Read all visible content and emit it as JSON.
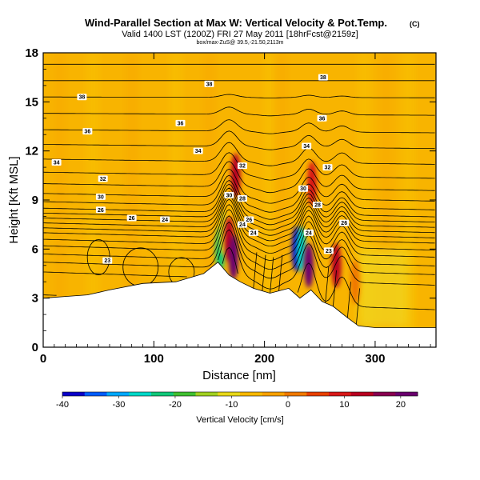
{
  "chart_data": {
    "type": "heatmap",
    "title": "Wind-Parallel Section at Max W: Vertical Velocity & Pot.Temp.",
    "title_mark": "(C)",
    "subtitle": "Valid 1400 LST (1200Z) FRI 27 May 2011 [18hrFcst@2159z]",
    "info_line": "box/max-ZuS@ 39.5,-21.50,2113m",
    "xlabel": "Distance [nm]",
    "ylabel": "Height [Kft MSL]",
    "xlim": [
      0,
      355
    ],
    "ylim": [
      0,
      18
    ],
    "x_ticks": [
      0,
      100,
      200,
      300
    ],
    "y_ticks": [
      0,
      3,
      6,
      9,
      12,
      15,
      18
    ],
    "colorbar": {
      "label": "Vertical Velocity [cm/s]",
      "min": -40,
      "max": 23,
      "tick_values": [
        -40,
        -30,
        -20,
        -10,
        0,
        10,
        20
      ],
      "colors": [
        "#0a00c8",
        "#005cff",
        "#00a8ff",
        "#00d8c8",
        "#10c878",
        "#40c030",
        "#a0d020",
        "#e8d818",
        "#f8b800",
        "#f8a000",
        "#f07800",
        "#e84000",
        "#d81818",
        "#b80020",
        "#880050",
        "#6a006e"
      ]
    },
    "terrain_profile": [
      [
        0,
        3.0
      ],
      [
        20,
        3.1
      ],
      [
        40,
        3.2
      ],
      [
        60,
        3.5
      ],
      [
        90,
        3.9
      ],
      [
        120,
        4.0
      ],
      [
        145,
        4.5
      ],
      [
        158,
        5.2
      ],
      [
        168,
        4.4
      ],
      [
        178,
        4.0
      ],
      [
        190,
        3.6
      ],
      [
        205,
        3.3
      ],
      [
        222,
        3.6
      ],
      [
        232,
        3.0
      ],
      [
        242,
        3.5
      ],
      [
        252,
        2.8
      ],
      [
        262,
        2.5
      ],
      [
        275,
        1.8
      ],
      [
        285,
        1.3
      ],
      [
        300,
        1.2
      ],
      [
        320,
        1.2
      ],
      [
        355,
        1.2
      ]
    ],
    "vertical_velocity_cells": [
      {
        "x": 160,
        "y": 6.0,
        "value": -22
      },
      {
        "x": 163,
        "y": 7.0,
        "value": -12
      },
      {
        "x": 168,
        "y": 6.6,
        "value": 14
      },
      {
        "x": 172,
        "y": 5.5,
        "value": 22
      },
      {
        "x": 174,
        "y": 10.5,
        "value": 12
      },
      {
        "x": 229,
        "y": 6.0,
        "value": -40
      },
      {
        "x": 233,
        "y": 6.0,
        "value": -28
      },
      {
        "x": 240,
        "y": 5.0,
        "value": 20
      },
      {
        "x": 243,
        "y": 10.0,
        "value": 10
      },
      {
        "x": 265,
        "y": 5.0,
        "value": 15
      },
      {
        "x": 282,
        "y": 4.0,
        "value": 3
      }
    ],
    "potential_temperature_labels": [
      {
        "x": 150,
        "y": 16.1,
        "text": "38"
      },
      {
        "x": 253,
        "y": 16.5,
        "text": "38"
      },
      {
        "x": 35,
        "y": 15.3,
        "text": "38"
      },
      {
        "x": 252,
        "y": 14.0,
        "text": "36"
      },
      {
        "x": 40,
        "y": 13.2,
        "text": "36"
      },
      {
        "x": 124,
        "y": 13.7,
        "text": "36"
      },
      {
        "x": 12,
        "y": 11.3,
        "text": "34"
      },
      {
        "x": 140,
        "y": 12.0,
        "text": "34"
      },
      {
        "x": 238,
        "y": 12.3,
        "text": "34"
      },
      {
        "x": 180,
        "y": 11.1,
        "text": "32"
      },
      {
        "x": 257,
        "y": 11.0,
        "text": "32"
      },
      {
        "x": 54,
        "y": 10.3,
        "text": "32"
      },
      {
        "x": 168,
        "y": 9.3,
        "text": "30"
      },
      {
        "x": 52,
        "y": 9.2,
        "text": "30"
      },
      {
        "x": 235,
        "y": 9.7,
        "text": "30"
      },
      {
        "x": 180,
        "y": 9.1,
        "text": "28"
      },
      {
        "x": 248,
        "y": 8.7,
        "text": "28"
      },
      {
        "x": 52,
        "y": 8.4,
        "text": "26"
      },
      {
        "x": 80,
        "y": 7.9,
        "text": "26"
      },
      {
        "x": 186,
        "y": 7.8,
        "text": "26"
      },
      {
        "x": 272,
        "y": 7.6,
        "text": "26"
      },
      {
        "x": 110,
        "y": 7.8,
        "text": "24"
      },
      {
        "x": 180,
        "y": 7.5,
        "text": "24"
      },
      {
        "x": 240,
        "y": 7.0,
        "text": "24"
      },
      {
        "x": 58,
        "y": 5.3,
        "text": "23"
      },
      {
        "x": 190,
        "y": 7.0,
        "text": "24"
      },
      {
        "x": 258,
        "y": 5.9,
        "text": "23"
      }
    ]
  }
}
